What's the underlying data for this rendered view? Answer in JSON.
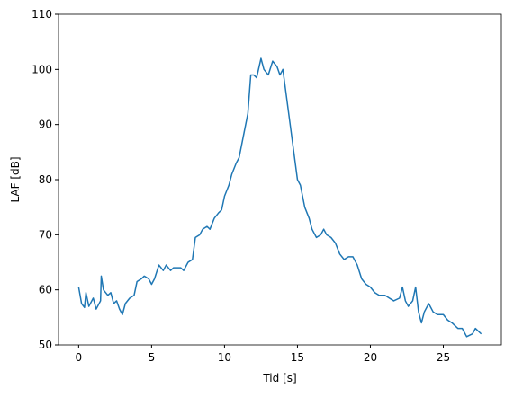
{
  "chart_data": {
    "type": "line",
    "xlabel": "Tid [s]",
    "ylabel": "LAF [dB]",
    "x": [
      0,
      0.2,
      0.4,
      0.5,
      0.7,
      1.0,
      1.2,
      1.5,
      1.55,
      1.7,
      2.0,
      2.2,
      2.4,
      2.6,
      2.8,
      3.0,
      3.2,
      3.5,
      3.8,
      4.0,
      4.3,
      4.5,
      4.8,
      5.0,
      5.2,
      5.5,
      5.8,
      6.0,
      6.3,
      6.5,
      7.0,
      7.2,
      7.5,
      7.8,
      8.0,
      8.3,
      8.5,
      8.8,
      9.0,
      9.3,
      9.6,
      9.8,
      10.0,
      10.3,
      10.5,
      10.8,
      11.0,
      11.3,
      11.6,
      11.8,
      12.0,
      12.2,
      12.5,
      12.7,
      13.0,
      13.3,
      13.6,
      13.8,
      14.0,
      14.2,
      14.5,
      14.8,
      15.0,
      15.2,
      15.5,
      15.8,
      16.0,
      16.3,
      16.6,
      16.8,
      17.0,
      17.3,
      17.6,
      17.9,
      18.2,
      18.5,
      18.8,
      19.1,
      19.4,
      19.7,
      20.0,
      20.3,
      20.6,
      21.0,
      21.3,
      21.6,
      22.0,
      22.2,
      22.4,
      22.6,
      22.9,
      23.1,
      23.3,
      23.5,
      23.7,
      24.0,
      24.3,
      24.6,
      25.0,
      25.3,
      25.6,
      26.0,
      26.3,
      26.6,
      27.0,
      27.2,
      27.4,
      27.6
    ],
    "series": [
      {
        "name": "LAF",
        "color": "#1f77b4",
        "values": [
          60.5,
          57.5,
          56.8,
          59.5,
          57,
          58.5,
          56.5,
          58,
          62.5,
          60,
          59,
          59.5,
          57.5,
          58,
          56.5,
          55.5,
          57.5,
          58.5,
          59,
          61.5,
          62,
          62.5,
          62,
          61,
          62,
          64.5,
          63.5,
          64.5,
          63.5,
          64,
          64,
          63.5,
          65,
          65.5,
          69.5,
          70,
          71,
          71.5,
          71,
          73,
          74,
          74.5,
          77,
          79,
          81,
          83,
          84,
          88,
          92,
          99,
          99,
          98.5,
          102,
          100,
          99,
          101.5,
          100.5,
          99,
          100,
          96,
          90,
          84,
          80,
          79,
          75,
          73,
          71,
          69.5,
          70,
          71,
          70,
          69.5,
          68.5,
          66.5,
          65.5,
          66,
          66,
          64.5,
          62,
          61,
          60.5,
          59.5,
          59,
          59,
          58.5,
          58,
          58.5,
          60.5,
          58,
          57,
          58,
          60.5,
          56,
          54,
          56,
          57.5,
          56,
          55.5,
          55.5,
          54.5,
          54,
          53,
          53,
          51.5,
          52,
          53,
          52.5,
          52
        ]
      }
    ],
    "xlim": [
      -1.38,
      28.98
    ],
    "ylim": [
      50,
      110
    ],
    "xticks": [
      0,
      5,
      10,
      15,
      20,
      25
    ],
    "yticks": [
      50,
      60,
      70,
      80,
      90,
      100,
      110
    ]
  }
}
